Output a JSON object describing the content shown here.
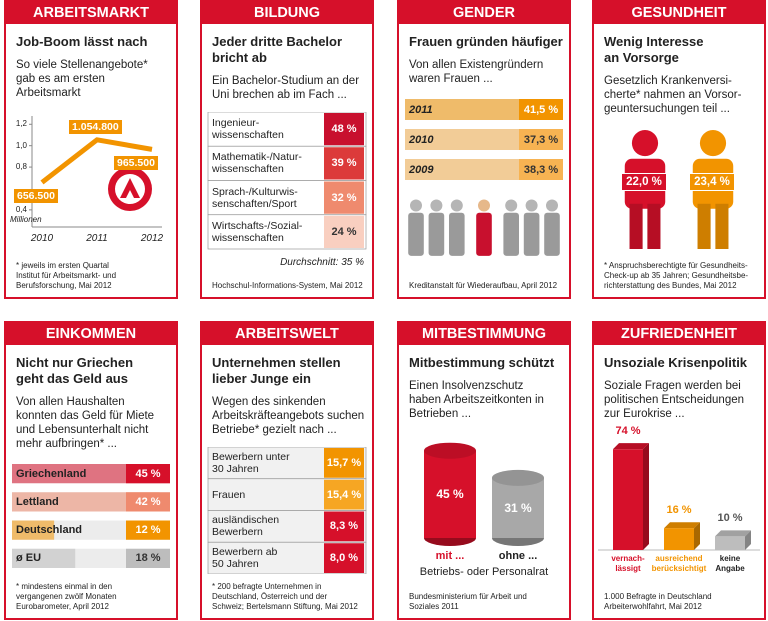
{
  "chart_data": [
    {
      "type": "line",
      "header": "ARBEITSMARKT",
      "title": "Job-Boom lässt nach",
      "subtitle": "So viele Stellenangebote*\ngab es am ersten\nArbeitsmarkt",
      "categories": [
        "2010",
        "2011",
        "2012"
      ],
      "values": [
        0.6565,
        1.0548,
        0.9655
      ],
      "value_labels": [
        "656.500",
        "1.054.800",
        "965.500"
      ],
      "color": "#f29400",
      "ylabel": "Millionen",
      "ylim": [
        0.24,
        1.24
      ],
      "yticks": [
        {
          "value": 0.4,
          "label": "0,4"
        },
        {
          "value": 0.8,
          "label": "0,8"
        },
        {
          "value": 1.0,
          "label": "1,0"
        },
        {
          "value": 1.2,
          "label": "1,2"
        }
      ],
      "note": "* jeweils im ersten Quartal\nInstitut für Arbeitsmarkt- und\nBerufsforschung, Mai 2012"
    },
    {
      "type": "table",
      "header": "BILDUNG",
      "title": "Jeder dritte Bachelor\nbricht ab",
      "subtitle": "Ein Bachelor-Studium an der\nUni brechen ab im Fach ...",
      "categories": [
        "Ingenieur-\nwissenschaften",
        "Mathematik-/Natur-\nwissenschaften",
        "Sprach-/Kulturwis-\nsenschaften/Sport",
        "Wirtschafts-/Sozial-\nwissenschaften"
      ],
      "values": [
        48,
        39,
        32,
        24
      ],
      "value_labels": [
        "48 %",
        "39 %",
        "32 %",
        "24 %"
      ],
      "colors": [
        "#c8102e",
        "#dc3a3a",
        "#ef8a6e",
        "#f9cfc0"
      ],
      "annotation": "Durchschnitt: 35 %",
      "note": "Hochschul-Informations-System, Mai 2012"
    },
    {
      "type": "hbar",
      "header": "GENDER",
      "title": "Frauen gründen häufiger",
      "subtitle": "Von allen Existengründern\nwaren Frauen ...",
      "categories": [
        "2011",
        "2010",
        "2009"
      ],
      "values": [
        41.5,
        37.3,
        38.3
      ],
      "value_labels": [
        "41,5 %",
        "37,3 %",
        "38,3 %"
      ],
      "colors": [
        "#f29400",
        "#f7b352",
        "#f7b352"
      ],
      "xlim": [
        0,
        45
      ],
      "note": "Kreditanstalt für Wiederaufbau, April 2012"
    },
    {
      "type": "figures",
      "header": "GESUNDHEIT",
      "title": "Wenig Interesse\nan Vorsorge",
      "subtitle": "Gesetzlich Krankenversi-\ncherte* nahmen an Vorsor-\ngeuntersuchungen teil ...",
      "values": [
        22.0,
        23.4
      ],
      "value_labels": [
        "22,0 %",
        "23,4 %"
      ],
      "colors": [
        "#d6102a",
        "#f29400"
      ],
      "note": "* Anspruchsberechtigte für Gesundheits-\nCheck-up ab 35 Jahren; Gesundheitsbe-\nrichterstattung des Bundes, Mai 2012"
    },
    {
      "type": "hbar",
      "header": "EINKOMMEN",
      "title": "Nicht nur Griechen\ngeht das Geld aus",
      "subtitle": "Von allen Haushalten\nkonnten das Geld für Miete\nund Lebensunterhalt nicht\nmehr aufbringen* ...",
      "categories": [
        "Griechenland",
        "Lettland",
        "Deutschland",
        "ø EU"
      ],
      "values": [
        45,
        42,
        12,
        18
      ],
      "value_labels": [
        "45 %",
        "42 %",
        "12 %",
        "18 %"
      ],
      "colors": [
        "#d6102a",
        "#ef8a6e",
        "#f29400",
        "#bdbdbd"
      ],
      "xlim": [
        0,
        45
      ],
      "note": "* mindestens einmal in den\nvergangenen zwölf Monaten\nEurobarometer, April 2012"
    },
    {
      "type": "table",
      "header": "ARBEITSWELT",
      "title": "Unternehmen stellen\nlieber Junge ein",
      "subtitle": "Wegen des sinkenden\nArbeitskräfteangebots suchen\nBetriebe* gezielt nach ...",
      "categories": [
        "Bewerbern unter\n30 Jahren",
        "Frauen",
        "ausländischen\nBewerbern",
        "Bewerbern ab\n50 Jahren"
      ],
      "values": [
        15.7,
        15.4,
        8.3,
        8.0
      ],
      "value_labels": [
        "15,7 %",
        "15,4 %",
        "8,3 %",
        "8,0 %"
      ],
      "colors": [
        "#f29400",
        "#f6a623",
        "#d6102a",
        "#d6102a"
      ],
      "note": "* 200 befragte Unternehmen in\nDeutschland, Österreich und der\nSchweiz; Bertelsmann Stiftung, Mai 2012"
    },
    {
      "type": "cylinder",
      "header": "MITBESTIMMUNG",
      "title": "Mitbestimmung schützt",
      "subtitle": "Einen Insolvenzschutz\nhaben Arbeitszeitkonten in\nBetrieben ...",
      "categories": [
        "mit ...",
        "ohne ..."
      ],
      "values": [
        45,
        31
      ],
      "value_labels": [
        "45 %",
        "31 %"
      ],
      "colors": [
        "#d6102a",
        "#a8a8a8"
      ],
      "xlabel": "Betriebs- oder Personalrat",
      "ylim": [
        0,
        50
      ],
      "note": "Bundesministerium für Arbeit und\nSoziales 2011"
    },
    {
      "type": "column",
      "header": "ZUFRIEDENHEIT",
      "title": "Unsoziale Krisenpolitik",
      "subtitle": "Soziale Fragen werden bei\npolitischen Entscheidungen\nzur Eurokrise ...",
      "categories": [
        "vernach-\nlässigt",
        "ausreichend\nberücksichtigt",
        "keine\nAngabe"
      ],
      "values": [
        74,
        16,
        10
      ],
      "value_labels": [
        "74 %",
        "16 %",
        "10 %"
      ],
      "colors": [
        "#d6102a",
        "#f29400",
        "#bdbdbd"
      ],
      "ylim": [
        0,
        80
      ],
      "note": "1.000 Befragte in Deutschland\nArbeiterwohlfahrt, Mai 2012"
    }
  ]
}
